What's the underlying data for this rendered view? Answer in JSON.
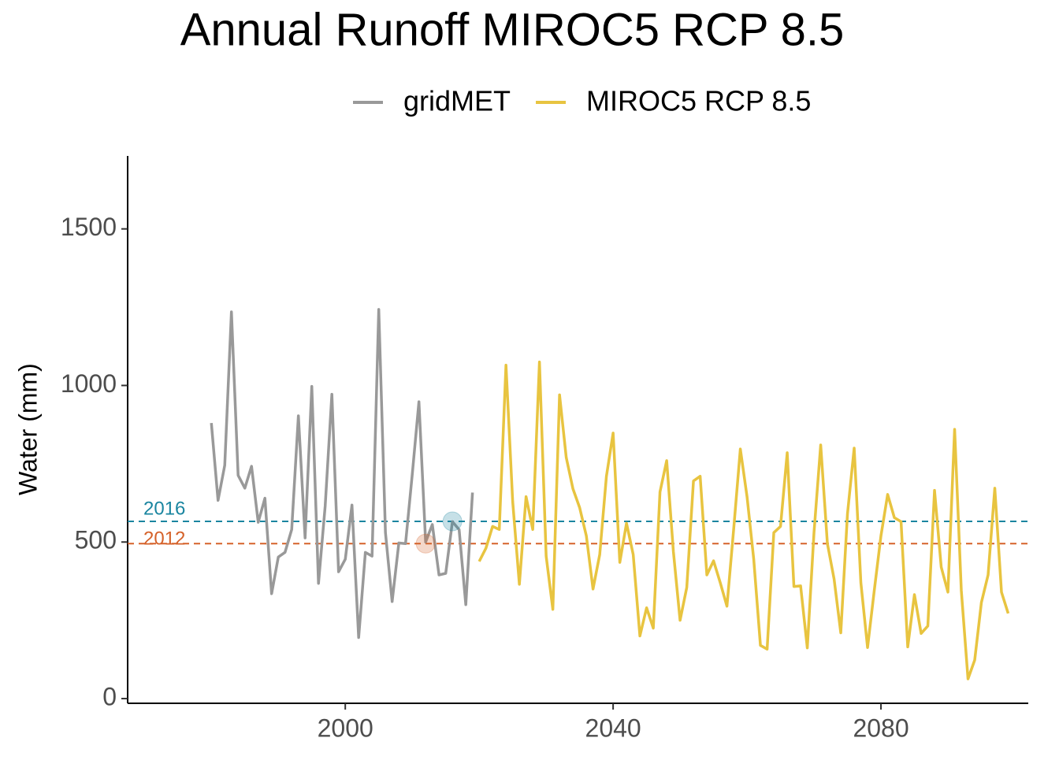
{
  "chart_data": {
    "type": "line",
    "title": "Annual Runoff MIROC5 RCP 8.5",
    "y_label": "Water (mm)",
    "xlim": [
      1967.5,
      2102
    ],
    "xticks": [
      2000,
      2040,
      2080
    ],
    "ylim": [
      -15,
      1733
    ],
    "yticks": [
      0,
      500,
      1000,
      1500
    ],
    "grid": false,
    "legend": "top",
    "series": [
      {
        "name": "gridMET",
        "color": "#999999",
        "x": [
          1980,
          1981,
          1982,
          1983,
          1984,
          1985,
          1986,
          1987,
          1988,
          1989,
          1990,
          1991,
          1992,
          1993,
          1994,
          1995,
          1996,
          1997,
          1998,
          1999,
          2000,
          2001,
          2002,
          2003,
          2004,
          2005,
          2006,
          2007,
          2008,
          2009,
          2010,
          2011,
          2012,
          2013,
          2014,
          2015,
          2016,
          2017,
          2018,
          2019
        ],
        "values": [
          880,
          633,
          745,
          1235,
          713,
          672,
          742,
          563,
          640,
          335,
          452,
          467,
          540,
          903,
          513,
          997,
          368,
          615,
          972,
          405,
          445,
          618,
          195,
          467,
          455,
          1243,
          530,
          310,
          497,
          495,
          715,
          948,
          500,
          556,
          395,
          400,
          565,
          540,
          300,
          658
        ]
      },
      {
        "name": "MIROC5 RCP 8.5",
        "color": "#e8c440",
        "x": [
          2020,
          2021,
          2022,
          2023,
          2024,
          2025,
          2026,
          2027,
          2028,
          2029,
          2030,
          2031,
          2032,
          2033,
          2034,
          2035,
          2036,
          2037,
          2038,
          2039,
          2040,
          2041,
          2042,
          2043,
          2044,
          2045,
          2046,
          2047,
          2048,
          2049,
          2050,
          2051,
          2052,
          2053,
          2054,
          2055,
          2056,
          2057,
          2058,
          2059,
          2060,
          2061,
          2062,
          2063,
          2064,
          2065,
          2066,
          2067,
          2068,
          2069,
          2070,
          2071,
          2072,
          2073,
          2074,
          2075,
          2076,
          2077,
          2078,
          2079,
          2080,
          2081,
          2082,
          2083,
          2084,
          2085,
          2086,
          2087,
          2088,
          2089,
          2090,
          2091,
          2092,
          2093,
          2094,
          2095,
          2096,
          2097,
          2098,
          2099
        ],
        "values": [
          438,
          480,
          550,
          540,
          1065,
          630,
          365,
          645,
          540,
          1075,
          455,
          285,
          970,
          770,
          670,
          610,
          520,
          350,
          460,
          710,
          848,
          435,
          560,
          460,
          200,
          290,
          225,
          660,
          760,
          470,
          250,
          355,
          695,
          710,
          395,
          440,
          370,
          295,
          540,
          797,
          645,
          445,
          170,
          158,
          530,
          550,
          785,
          358,
          360,
          162,
          530,
          810,
          495,
          382,
          210,
          590,
          800,
          370,
          163,
          345,
          520,
          652,
          578,
          565,
          165,
          332,
          208,
          232,
          665,
          420,
          340,
          860,
          345,
          63,
          123,
          307,
          395,
          672,
          340,
          272
        ]
      }
    ],
    "annotations": [
      {
        "label": "2016",
        "x": 2016,
        "value": 566,
        "color": "#1a85a0"
      },
      {
        "label": "2012",
        "x": 2012,
        "value": 495,
        "color": "#d5622a"
      }
    ]
  }
}
